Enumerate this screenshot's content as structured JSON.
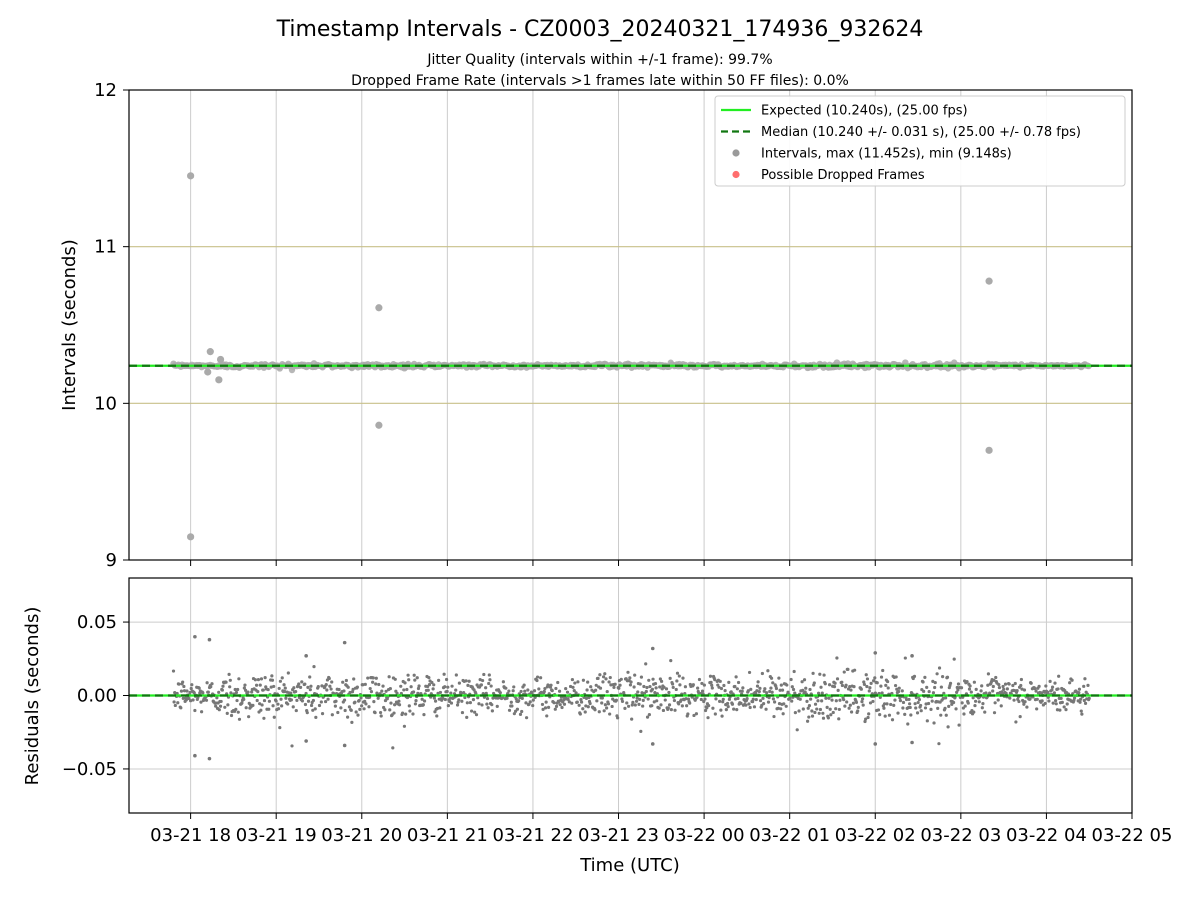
{
  "chart_data": {
    "title": "Timestamp Intervals - CZ0003_20240321_174936_932624",
    "subtitles": [
      "Jitter Quality (intervals within +/-1 frame): 99.7%",
      "Dropped Frame Rate (intervals >1 frames late within 50 FF files): 0.0%"
    ],
    "x_axis": {
      "label": "Time (UTC)",
      "tick_labels": [
        "03-21 18",
        "03-21 19",
        "03-21 20",
        "03-21 21",
        "03-21 22",
        "03-21 23",
        "03-22 00",
        "03-22 01",
        "03-22 02",
        "03-22 03",
        "03-22 04",
        "03-22 05"
      ],
      "range_hours_from_0321_18": [
        -0.72,
        11.0
      ],
      "data_range_hours_from_0321_18": [
        -0.2,
        10.5
      ]
    },
    "panels": [
      {
        "type": "scatter",
        "ylabel": "Intervals (seconds)",
        "ylim": [
          9,
          12
        ],
        "yticks": [
          "9",
          "10",
          "11",
          "12"
        ],
        "grid": "vertical",
        "reference_lines": [
          10.0,
          11.0
        ],
        "legend_position": "top-right",
        "legend": [
          {
            "label": "Expected (10.240s), (25.00 fps)",
            "style": "solid-line",
            "color": "#22ee22"
          },
          {
            "label": "Median (10.240 +/- 0.031 s), (25.00 +/- 0.78 fps)",
            "style": "dashed-line",
            "color": "#117711"
          },
          {
            "label": "Intervals, max (11.452s), min (9.148s)",
            "style": "dot",
            "color": "#888888"
          },
          {
            "label": "Possible Dropped Frames",
            "style": "dot",
            "color": "#ff5555"
          }
        ],
        "expected": 10.24,
        "median": 10.24,
        "band_spread": 0.031,
        "outliers": [
          {
            "t": 0.0,
            "y": 11.452
          },
          {
            "t": 0.0,
            "y": 9.148
          },
          {
            "t": 0.23,
            "y": 10.33
          },
          {
            "t": 0.35,
            "y": 10.28
          },
          {
            "t": 0.33,
            "y": 10.15
          },
          {
            "t": 0.2,
            "y": 10.2
          },
          {
            "t": 2.2,
            "y": 10.61
          },
          {
            "t": 2.2,
            "y": 9.86
          },
          {
            "t": 9.33,
            "y": 10.78
          },
          {
            "t": 9.33,
            "y": 9.7
          }
        ]
      },
      {
        "type": "scatter",
        "ylabel": "Residuals (seconds)",
        "ylim": [
          -0.08,
          0.08
        ],
        "yticks": [
          "0.05",
          "0.00",
          "−0.05"
        ],
        "grid": "both",
        "zero_line": 0.0,
        "outliers": [
          {
            "t": 0.05,
            "y": 0.04
          },
          {
            "t": 0.22,
            "y": 0.038
          },
          {
            "t": 0.05,
            "y": -0.041
          },
          {
            "t": 0.22,
            "y": -0.043
          },
          {
            "t": 1.35,
            "y": 0.027
          },
          {
            "t": 1.35,
            "y": -0.031
          },
          {
            "t": 1.8,
            "y": 0.036
          },
          {
            "t": 1.8,
            "y": -0.034
          },
          {
            "t": 5.4,
            "y": 0.032
          },
          {
            "t": 5.4,
            "y": -0.033
          },
          {
            "t": 8.0,
            "y": 0.029
          },
          {
            "t": 8.0,
            "y": -0.033
          },
          {
            "t": 8.43,
            "y": 0.027
          },
          {
            "t": 8.43,
            "y": -0.032
          }
        ]
      }
    ],
    "colors": {
      "points": "#777777",
      "top_points": "#aaaaaa",
      "expected_line": "#22ee22",
      "median_line": "#117711",
      "reference_line": "#c8c08a",
      "grid": "#cccccc"
    }
  }
}
